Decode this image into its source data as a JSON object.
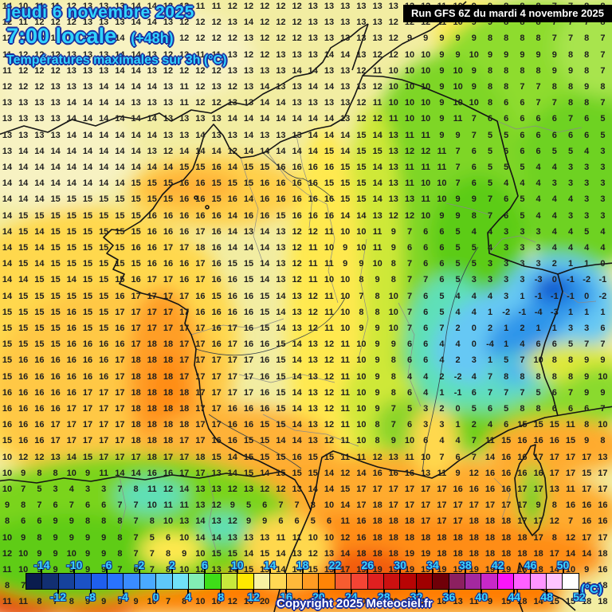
{
  "header": {
    "date_line": "jeudi 6 novembre 2025",
    "time_line": "7:00 locale",
    "offset": "(+48h)",
    "subtitle": "Températures maximales sur 3h (°C)",
    "run_info": "Run GFS 6Z du mardi 4 novembre 2025"
  },
  "footer": {
    "copyright": "Copyright 2025 Meteociel.fr"
  },
  "colorbar": {
    "unit": "(°C)",
    "min": -16,
    "max": 52,
    "step_per_cell": 2,
    "labels_above": [
      -14,
      -10,
      -6,
      -2,
      2,
      6,
      10,
      14,
      18,
      22,
      26,
      30,
      34,
      38,
      42,
      46,
      50
    ],
    "labels_below": [
      -12,
      -8,
      -4,
      0,
      4,
      8,
      12,
      16,
      20,
      24,
      28,
      32,
      36,
      40,
      44,
      48,
      52
    ],
    "cell_colors": [
      "#0a1c4e",
      "#122f72",
      "#16429c",
      "#1b52c6",
      "#1f5fee",
      "#2973ff",
      "#3a8cff",
      "#4aaaff",
      "#5ec8fa",
      "#70e2f8",
      "#82eeb4",
      "#3ede18",
      "#c8e83c",
      "#ffe800",
      "#f8f2a2",
      "#ffd854",
      "#ffb93a",
      "#ff9b22",
      "#ff8406",
      "#f65c30",
      "#f44434",
      "#e02020",
      "#cc1010",
      "#b80404",
      "#a00000",
      "#700008",
      "#8c2060",
      "#a428a0",
      "#c828c8",
      "#fa14fa",
      "#ff60ff",
      "#ff94ff",
      "#ffc4ff",
      "#ffffff"
    ]
  },
  "colors": {
    "title_cyan": "#2fd4ff",
    "title_outline_navy": "#1b2f9e",
    "run_box_bg": "#000000",
    "run_box_fg": "#ffffff",
    "number_color": "#1e1e1e"
  },
  "temp_grid": {
    "rows": [
      "14 10 11 11 12 13 13 13 14 14 13 12 11 11 12 12 12 12 12 13 13 13 13 13 13 12 12 11 10 9 9 8 8 8 7 7 8 8",
      "12 11 12 12 12 13 13 13 14 14 13 12 12 12 13 14 12 12 12 13 13 13 13 13 12 12 12 11 10 9 9 8 8 8 7 7 7 8",
      "12 12 12 12 13 13 13 14 14 14 13 12 12 12 12 13 12 12 12 13 13 13 13 13 12 9 9 9 9 9 8 8 8 8 7 7 8 7",
      "11 12 12 12 13 13 13 14 14 13 12 13 11 11 13 12 12 13 13 13 14 14 13 12 12 10 10 9 9 10 9 9 9 9 9 8 8 7",
      "11 12 12 12 13 13 13 14 14 13 12 12 12 12 13 13 13 13 14 14 13 13 12 11 10 10 10 9 10 9 8 8 8 8 9 9 8 7",
      "12 12 12 13 13 13 14 14 14 14 13 11 12 13 12 13 14 13 13 14 14 13 13 12 10 10 10 9 10 9 8 8 7 7 8 8 9 8",
      "13 13 13 13 14 14 14 14 13 13 13 11 12 12 13 13 14 14 13 13 13 13 12 11 10 10 10 9 10 10 8 6 6 7 7 8 8 7",
      "13 13 13 13 14 14 14 14 14 14 13 13 13 13 14 14 14 14 14 14 14 13 12 12 11 10 10 9 11 7 6 6 6 6 6 7 6 5",
      "13 13 13 13 14 14 14 14 14 14 13 13 14 13 13 14 13 13 13 14 14 14 15 14 13 11 11 9 9 7 5 5 6 6 6 6 6 5",
      "13 14 14 14 14 14 14 14 14 13 12 14 14 14 12 14 14 14 14 14 15 14 15 15 13 12 12 11 7 6 5 6 6 6 5 5 4 3",
      "14 14 14 14 14 14 14 14 14 14 14 15 15 16 14 15 15 16 16 16 16 15 15 14 13 11 11 11 7 6 5 5 5 4 4 3 3 3",
      "14 14 14 14 14 14 14 14 15 15 15 16 16 15 15 15 16 16 16 16 15 15 15 14 13 11 10 10 7 6 5 4 4 4 3 3 3 3",
      "14 14 14 15 15 15 15 15 15 15 15 16 16 15 16 14 16 16 16 16 16 15 15 14 13 13 11 10 9 9 7 6 5 4 4 4 3 3",
      "14 15 15 15 15 15 15 15 15 16 16 16 16 16 14 16 16 15 16 16 16 14 14 13 12 12 10 9 9 8 7 6 5 4 4 3 3 3",
      "14 15 14 15 15 15 15 15 15 16 16 16 17 16 14 13 14 13 12 12 11 10 10 11 9 7 6 6 5 4 4 3 3 3 4 4 5 4",
      "14 15 14 15 15 15 15 15 16 16 17 17 18 16 14 14 14 13 12 11 10 9 10 11 9 6 6 6 5 5 4 3 3 3 4 4 4 4",
      "14 15 14 15 15 15 15 15 15 16 16 16 17 16 15 15 14 13 12 11 11 9 9 10 8 7 6 6 5 5 3 3 3 3 2 1 1 0",
      "14 14 15 15 14 15 15 15 16 17 17 16 17 16 16 15 14 13 12 11 10 10 8 9 8 7 7 6 5 3 3 3 3 -3 0 -1 -2 -1",
      "14 15 15 15 15 15 15 16 17 17 17 17 16 15 16 16 15 14 13 12 11 10 7 8 10 7 6 5 4 4 4 3 1 -1 -1 -1 0 -2",
      "15 15 15 15 16 15 15 17 17 17 17 17 16 16 16 16 15 14 13 12 11 10 8 8 10 7 6 5 4 4 1 -2 -1 -4 -3 1 1 1",
      "15 15 15 15 16 15 15 16 17 17 17 17 17 16 17 16 15 14 13 12 11 10 9 9 10 7 6 7 2 0 2 1 2 1 1 3 3 6",
      "15 15 15 15 16 16 16 16 17 18 18 17 17 16 17 16 16 15 14 13 12 11 10 9 9 6 6 4 4 0 -4 1 4 6 6 5 7 7",
      "15 16 16 16 16 16 16 17 18 18 18 17 17 17 17 17 16 15 14 13 12 11 10 9 8 6 6 4 2 3 1 5 7 10 8 8 9 9",
      "15 16 16 16 16 16 16 17 18 18 18 17 17 17 17 17 16 15 14 13 12 11 10 9 8 4 4 2 -2 4 7 8 8 8 8 8 9 10",
      "16 16 16 16 16 17 17 17 18 18 18 18 17 17 17 17 16 15 14 13 12 11 10 9 8 6 4 1 -1 6 7 7 7 5 6 7 9 9",
      "16 16 16 16 17 17 17 17 18 18 18 18 17 17 16 16 16 15 14 13 12 11 10 9 7 5 3 2 0 5 6 5 8 8 6 6 6 7",
      "16 16 16 17 17 17 17 17 18 18 18 18 17 17 16 16 15 15 14 13 12 11 10 8 7 6 3 3 1 2 4 6 15 15 15 11 8 10",
      "15 16 16 17 17 17 17 17 18 18 18 17 17 16 16 15 15 14 14 13 12 11 10 8 9 10 6 4 4 7 11 15 16 16 16 15 9 8",
      "10 12 12 13 14 15 17 17 17 18 17 17 18 15 14 15 15 15 16 15 15 11 11 12 13 11 10 7 6 7 14 16 16 17 17 17 17 13",
      "10 9 8 8 10 9 11 14 14 16 16 17 17 13 14 15 14 15 15 15 14 12 14 16 16 16 13 11 9 12 16 16 16 16 17 17 15 17",
      "10 7 5 3 4 3 3 7 8 11 12 14 13 13 12 13 12 12 13 14 14 15 17 17 17 17 17 17 16 16 16 16 17 17 13 11 17 17",
      "9 8 7 6 7 6 6 7 7 10 11 11 13 12 9 5 6 7 7 8 10 14 17 18 17 17 17 17 17 17 17 17 17 9 8 16 16 16",
      "8 6 6 9 9 8 8 8 7 8 10 13 14 13 12 9 9 6 6 5 6 11 16 18 18 18 17 17 17 18 18 18 17 17 12 7 16 16",
      "10 9 8 9 9 9 9 8 7 5 6 10 14 14 13 13 13 11 11 10 10 12 16 18 18 18 18 18 18 18 18 18 18 17 8 12 17 17",
      "12 10 9 9 10 9 9 8 7 7 8 9 10 15 15 14 15 14 13 12 13 14 18 18 18 19 19 18 18 18 18 18 18 18 17 14 14 18",
      "11 10 9 9 9 9 9 7 6 7 8 10 12 13 14 15 15 14 14 15 15 17 19 19 19 19 19 19 19 19 19 19 18 18 14 10 9 16",
      "8 7 5 5 6 7 9 8 8 7 8 9 10 13 13 19 19 20 20 20 20 20 20 20 20 20 19 19 18 16 13 11 9 15 18 15 15 18",
      "11 11 8 7 8 9 9 9 9 10 7 8 10 10 12 16 20 19 19 19 20 20 20 20 20 19 19 18 13 11 9 15 18 14 15 15 18 18"
    ]
  }
}
